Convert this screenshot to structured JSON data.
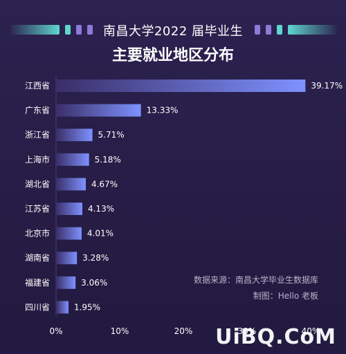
{
  "header": {
    "title_line1": "南昌大学2022 届毕业生",
    "title_line2": "主要就业地区分布"
  },
  "notes": {
    "source": "数据来源：南昌大学毕业生数据库",
    "author": "制图：Hello 老板"
  },
  "watermark": "UiBQ.CoM",
  "colors": {
    "background": "#2a1f4a",
    "bar_start": "#3a2e68",
    "bar_end": "#7e92ff",
    "accent_teal": "#5fd6d0",
    "accent_purple": "#8e7ad8"
  },
  "chart_data": {
    "type": "bar",
    "orientation": "horizontal",
    "categories": [
      "江西省",
      "广东省",
      "浙江省",
      "上海市",
      "湖北省",
      "江苏省",
      "北京市",
      "湖南省",
      "福建省",
      "四川省"
    ],
    "values": [
      39.17,
      13.33,
      5.71,
      5.18,
      4.67,
      4.13,
      4.01,
      3.28,
      3.06,
      1.95
    ],
    "value_labels": [
      "39.17%",
      "13.33%",
      "5.71%",
      "5.18%",
      "4.67%",
      "4.13%",
      "4.01%",
      "3.28%",
      "3.06%",
      "1.95%"
    ],
    "xlim": [
      0,
      40
    ],
    "xticks": [
      0,
      10,
      20,
      30,
      40
    ],
    "xtick_labels": [
      "0%",
      "10%",
      "20%",
      "30%",
      "40%"
    ],
    "grid": false,
    "legend": "none"
  }
}
